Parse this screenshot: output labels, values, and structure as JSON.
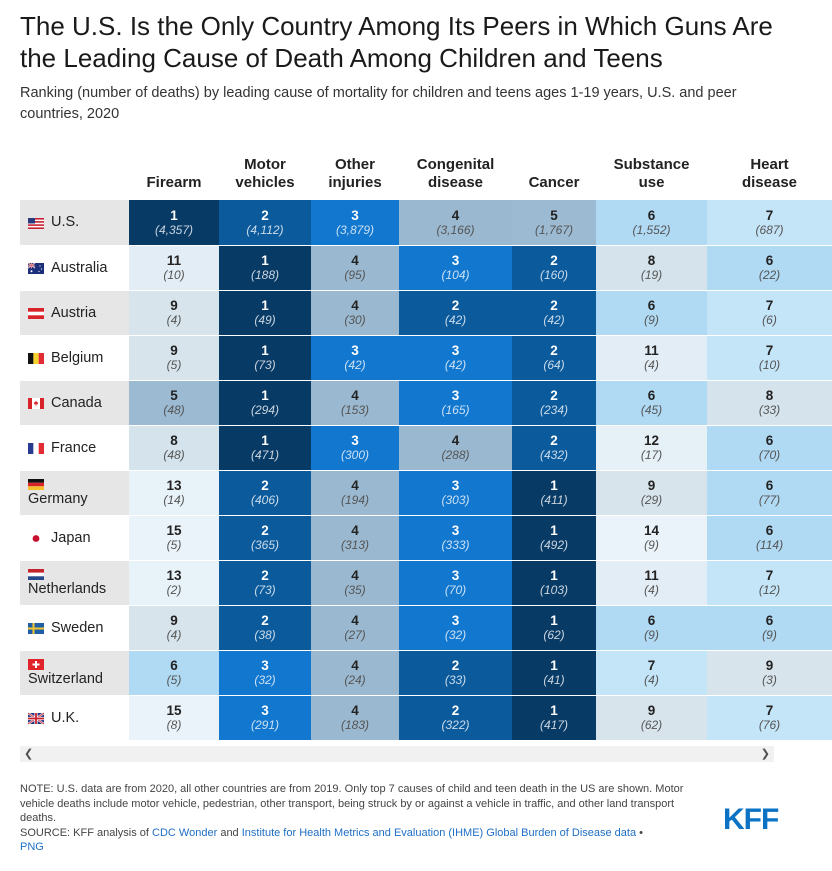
{
  "title": "The U.S. Is the Only Country Among Its Peers in Which Guns Are the Leading Cause of Death Among Children and Teens",
  "subtitle": "Ranking (number of deaths) by leading cause of mortality for children and teens ages 1-19 years, U.S. and peer countries, 2020",
  "chart_data": {
    "type": "table",
    "title": "The U.S. Is the Only Country Among Its Peers in Which Guns Are the Leading Cause of Death Among Children and Teens",
    "subtitle": "Ranking (number of deaths) by leading cause of mortality for children and teens ages 1-19 years, U.S. and peer countries, 2020",
    "columns": [
      {
        "l1": "",
        "l2": "Firearm"
      },
      {
        "l1": "Motor",
        "l2": "vehicles"
      },
      {
        "l1": "Other",
        "l2": "injuries"
      },
      {
        "l1": "Congenital",
        "l2": "disease"
      },
      {
        "l1": "",
        "l2": "Cancer"
      },
      {
        "l1": "Substance",
        "l2": "use"
      },
      {
        "l1": "Heart",
        "l2": "disease"
      }
    ],
    "rows": [
      {
        "country": "U.S.",
        "cells": [
          {
            "rank": 1,
            "deaths": "(4,357)"
          },
          {
            "rank": 2,
            "deaths": "(4,112)"
          },
          {
            "rank": 3,
            "deaths": "(3,879)"
          },
          {
            "rank": 4,
            "deaths": "(3,166)"
          },
          {
            "rank": 5,
            "deaths": "(1,767)"
          },
          {
            "rank": 6,
            "deaths": "(1,552)"
          },
          {
            "rank": 7,
            "deaths": "(687)"
          }
        ]
      },
      {
        "country": "Australia",
        "cells": [
          {
            "rank": 11,
            "deaths": "(10)"
          },
          {
            "rank": 1,
            "deaths": "(188)"
          },
          {
            "rank": 4,
            "deaths": "(95)"
          },
          {
            "rank": 3,
            "deaths": "(104)"
          },
          {
            "rank": 2,
            "deaths": "(160)"
          },
          {
            "rank": 8,
            "deaths": "(19)"
          },
          {
            "rank": 6,
            "deaths": "(22)"
          }
        ]
      },
      {
        "country": "Austria",
        "cells": [
          {
            "rank": 9,
            "deaths": "(4)"
          },
          {
            "rank": 1,
            "deaths": "(49)"
          },
          {
            "rank": 4,
            "deaths": "(30)"
          },
          {
            "rank": 2,
            "deaths": "(42)"
          },
          {
            "rank": 2,
            "deaths": "(42)"
          },
          {
            "rank": 6,
            "deaths": "(9)"
          },
          {
            "rank": 7,
            "deaths": "(6)"
          }
        ]
      },
      {
        "country": "Belgium",
        "cells": [
          {
            "rank": 9,
            "deaths": "(5)"
          },
          {
            "rank": 1,
            "deaths": "(73)"
          },
          {
            "rank": 3,
            "deaths": "(42)"
          },
          {
            "rank": 3,
            "deaths": "(42)"
          },
          {
            "rank": 2,
            "deaths": "(64)"
          },
          {
            "rank": 11,
            "deaths": "(4)"
          },
          {
            "rank": 7,
            "deaths": "(10)"
          }
        ]
      },
      {
        "country": "Canada",
        "cells": [
          {
            "rank": 5,
            "deaths": "(48)"
          },
          {
            "rank": 1,
            "deaths": "(294)"
          },
          {
            "rank": 4,
            "deaths": "(153)"
          },
          {
            "rank": 3,
            "deaths": "(165)"
          },
          {
            "rank": 2,
            "deaths": "(234)"
          },
          {
            "rank": 6,
            "deaths": "(45)"
          },
          {
            "rank": 8,
            "deaths": "(33)"
          }
        ]
      },
      {
        "country": "France",
        "cells": [
          {
            "rank": 8,
            "deaths": "(48)"
          },
          {
            "rank": 1,
            "deaths": "(471)"
          },
          {
            "rank": 3,
            "deaths": "(300)"
          },
          {
            "rank": 4,
            "deaths": "(288)"
          },
          {
            "rank": 2,
            "deaths": "(432)"
          },
          {
            "rank": 12,
            "deaths": "(17)"
          },
          {
            "rank": 6,
            "deaths": "(70)"
          }
        ]
      },
      {
        "country": "Germany",
        "cells": [
          {
            "rank": 13,
            "deaths": "(14)"
          },
          {
            "rank": 2,
            "deaths": "(406)"
          },
          {
            "rank": 4,
            "deaths": "(194)"
          },
          {
            "rank": 3,
            "deaths": "(303)"
          },
          {
            "rank": 1,
            "deaths": "(411)"
          },
          {
            "rank": 9,
            "deaths": "(29)"
          },
          {
            "rank": 6,
            "deaths": "(77)"
          }
        ]
      },
      {
        "country": "Japan",
        "cells": [
          {
            "rank": 15,
            "deaths": "(5)"
          },
          {
            "rank": 2,
            "deaths": "(365)"
          },
          {
            "rank": 4,
            "deaths": "(313)"
          },
          {
            "rank": 3,
            "deaths": "(333)"
          },
          {
            "rank": 1,
            "deaths": "(492)"
          },
          {
            "rank": 14,
            "deaths": "(9)"
          },
          {
            "rank": 6,
            "deaths": "(114)"
          }
        ]
      },
      {
        "country": "Netherlands",
        "cells": [
          {
            "rank": 13,
            "deaths": "(2)"
          },
          {
            "rank": 2,
            "deaths": "(73)"
          },
          {
            "rank": 4,
            "deaths": "(35)"
          },
          {
            "rank": 3,
            "deaths": "(70)"
          },
          {
            "rank": 1,
            "deaths": "(103)"
          },
          {
            "rank": 11,
            "deaths": "(4)"
          },
          {
            "rank": 7,
            "deaths": "(12)"
          }
        ]
      },
      {
        "country": "Sweden",
        "cells": [
          {
            "rank": 9,
            "deaths": "(4)"
          },
          {
            "rank": 2,
            "deaths": "(38)"
          },
          {
            "rank": 4,
            "deaths": "(27)"
          },
          {
            "rank": 3,
            "deaths": "(32)"
          },
          {
            "rank": 1,
            "deaths": "(62)"
          },
          {
            "rank": 6,
            "deaths": "(9)"
          },
          {
            "rank": 6,
            "deaths": "(9)"
          }
        ]
      },
      {
        "country": "Switzerland",
        "cells": [
          {
            "rank": 6,
            "deaths": "(5)"
          },
          {
            "rank": 3,
            "deaths": "(32)"
          },
          {
            "rank": 4,
            "deaths": "(24)"
          },
          {
            "rank": 2,
            "deaths": "(33)"
          },
          {
            "rank": 1,
            "deaths": "(41)"
          },
          {
            "rank": 7,
            "deaths": "(4)"
          },
          {
            "rank": 9,
            "deaths": "(3)"
          }
        ]
      },
      {
        "country": "U.K.",
        "cells": [
          {
            "rank": 15,
            "deaths": "(8)"
          },
          {
            "rank": 3,
            "deaths": "(291)"
          },
          {
            "rank": 4,
            "deaths": "(183)"
          },
          {
            "rank": 2,
            "deaths": "(322)"
          },
          {
            "rank": 1,
            "deaths": "(417)"
          },
          {
            "rank": 9,
            "deaths": "(62)"
          },
          {
            "rank": 7,
            "deaths": "(76)"
          }
        ]
      }
    ],
    "rank_colors": {
      "1": "#083a66",
      "2": "#0b5a9c",
      "3": "#1277cf",
      "4": "#9ab8cf",
      "5": "#9cbad2",
      "6": "#b0d9f3",
      "7": "#c4e4f8",
      "8": "#d4e3ec",
      "9": "#d7e4ec",
      "10": "#ddeaf2",
      "11": "#e2edf5",
      "12": "#e5f0f7",
      "13": "#e8f2f9",
      "14": "#eaf3f9",
      "15": "#eaf3f9"
    },
    "dark_text_color": "#222222",
    "light_text_color": "#ffffff"
  },
  "flags": [
    "us-flag-icon",
    "australia-flag-icon",
    "austria-flag-icon",
    "belgium-flag-icon",
    "canada-flag-icon",
    "france-flag-icon",
    "germany-flag-icon",
    "japan-flag-icon",
    "netherlands-flag-icon",
    "sweden-flag-icon",
    "switzerland-flag-icon",
    "uk-flag-icon"
  ],
  "scroll_left_arrow": "❮",
  "scroll_right_arrow": "❯",
  "footer": {
    "note": "NOTE: U.S. data are from 2020, all other countries are from 2019. Only top 7 causes of child and teen death in the US are shown. Motor vehicle deaths include motor vehicle, pedestrian, other transport, being struck by or against a vehicle in traffic, and other land transport deaths.",
    "source_prefix": "SOURCE: KFF analysis of ",
    "source_link1": "CDC Wonder",
    "source_and": " and ",
    "source_link2": "Institute for Health Metrics and Evaluation (IHME) Global Burden of Disease data",
    "source_sep": " • ",
    "png_link": "PNG"
  },
  "logo_text": "KFF"
}
